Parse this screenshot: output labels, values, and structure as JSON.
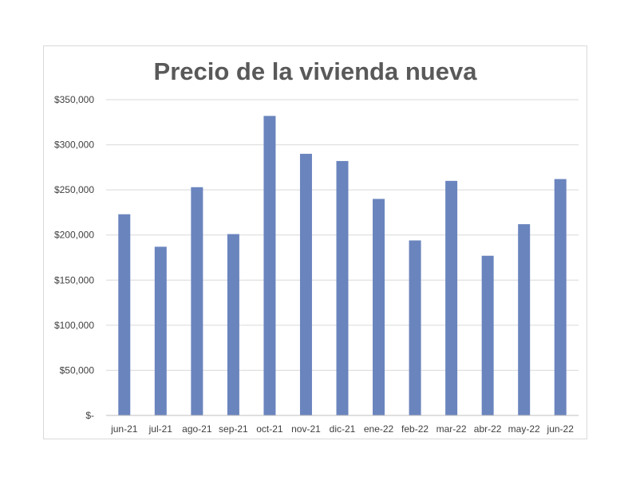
{
  "chart_data": {
    "type": "bar",
    "title": "Precio de la vivienda nueva",
    "xlabel": "",
    "ylabel": "",
    "categories": [
      "jun-21",
      "jul-21",
      "ago-21",
      "sep-21",
      "oct-21",
      "nov-21",
      "dic-21",
      "ene-22",
      "feb-22",
      "mar-22",
      "abr-22",
      "may-22",
      "jun-22"
    ],
    "values": [
      223000,
      187000,
      253000,
      201000,
      332000,
      290000,
      282000,
      240000,
      194000,
      260000,
      177000,
      212000,
      262000
    ],
    "ylim": [
      0,
      350000
    ],
    "y_ticks": [
      0,
      50000,
      100000,
      150000,
      200000,
      250000,
      300000,
      350000
    ],
    "y_tick_labels": [
      "$-",
      "$50,000",
      "$100,000",
      "$150,000",
      "$200,000",
      "$250,000",
      "$300,000",
      "$350,000"
    ],
    "grid": true,
    "legend": "none",
    "bar_color": "#6a84be",
    "grid_color": "#d9d9d9",
    "title_color": "#595959"
  }
}
